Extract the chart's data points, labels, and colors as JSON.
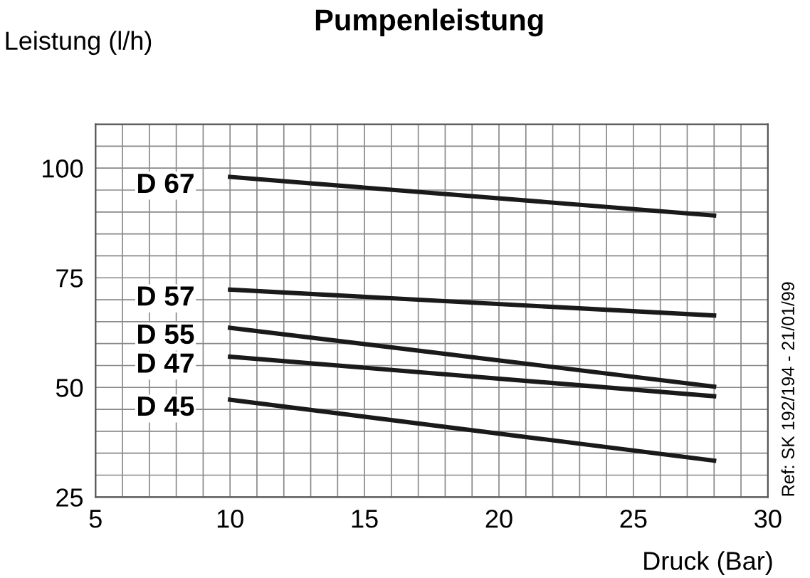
{
  "chart_data": {
    "type": "line",
    "title": "Pumpenleistung",
    "ylabel": "Leistung (l/h)",
    "xlabel": "Druck (Bar)",
    "annotations": [
      "Ref: SK 192/194 - 21/01/99"
    ],
    "x": [
      10,
      28
    ],
    "series": [
      {
        "name": "D 67",
        "color": "#1a1a1a",
        "values": [
          98,
          89.2
        ]
      },
      {
        "name": "D 57",
        "color": "#1a1a1a",
        "values": [
          72.3,
          66.4
        ]
      },
      {
        "name": "D 55",
        "color": "#1a1a1a",
        "values": [
          63.6,
          50.2
        ]
      },
      {
        "name": "D 47",
        "color": "#1a1a1a",
        "values": [
          57,
          48
        ]
      },
      {
        "name": "D 45",
        "color": "#1a1a1a",
        "values": [
          47.2,
          33.3
        ]
      }
    ],
    "xlim": [
      5,
      30
    ],
    "ylim": [
      25,
      110
    ],
    "xticks": [
      5,
      {
        "value": 6,
        "label": null
      },
      {
        "value": 7,
        "label": null
      },
      {
        "value": 8,
        "label": null
      },
      {
        "value": 9,
        "label": null
      },
      10,
      {
        "value": 11,
        "label": null
      },
      {
        "value": 12,
        "label": null
      },
      {
        "value": 13,
        "label": null
      },
      {
        "value": 14,
        "label": null
      },
      15,
      {
        "value": 16,
        "label": null
      },
      {
        "value": 17,
        "label": null
      },
      {
        "value": 18,
        "label": null
      },
      {
        "value": 19,
        "label": null
      },
      20,
      {
        "value": 21,
        "label": null
      },
      {
        "value": 22,
        "label": null
      },
      {
        "value": 23,
        "label": null
      },
      {
        "value": 24,
        "label": null
      },
      25,
      {
        "value": 26,
        "label": null
      },
      {
        "value": 27,
        "label": null
      },
      {
        "value": 28,
        "label": null
      },
      {
        "value": 29,
        "label": null
      },
      30
    ],
    "yticks": [
      25,
      {
        "value": 30,
        "label": null
      },
      {
        "value": 35,
        "label": null
      },
      {
        "value": 40,
        "label": null
      },
      {
        "value": 45,
        "label": null
      },
      50,
      {
        "value": 55,
        "label": null
      },
      {
        "value": 60,
        "label": null
      },
      {
        "value": 65,
        "label": null
      },
      {
        "value": 70,
        "label": null
      },
      75,
      {
        "value": 80,
        "label": null
      },
      {
        "value": 85,
        "label": null
      },
      {
        "value": 90,
        "label": null
      },
      {
        "value": 95,
        "label": null
      },
      100,
      {
        "value": 105,
        "label": null
      },
      {
        "value": 110,
        "label": null
      }
    ],
    "grid": true,
    "legend": false,
    "marker": "none",
    "line_style": "solid"
  }
}
